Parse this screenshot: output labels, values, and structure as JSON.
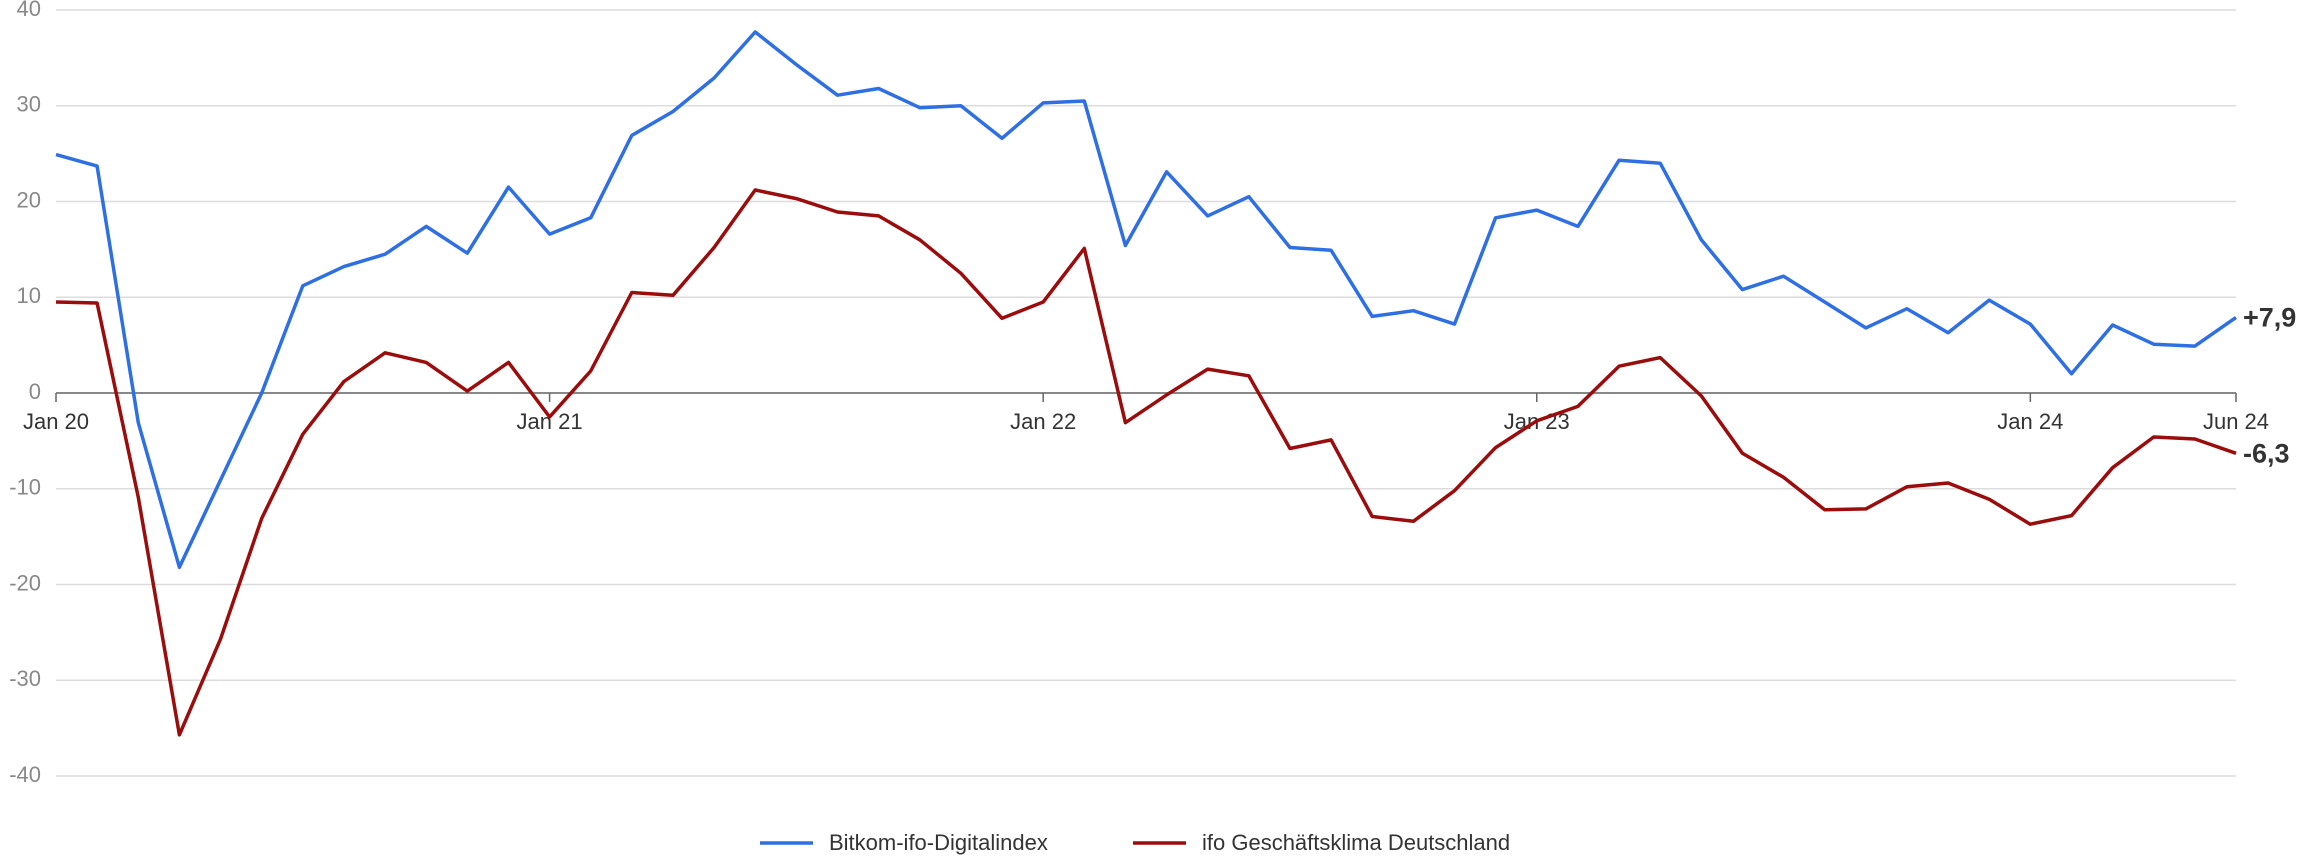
{
  "chart_data": {
    "type": "line",
    "categories": [
      "Jan 20",
      null,
      null,
      null,
      null,
      null,
      null,
      null,
      null,
      null,
      null,
      null,
      "Jan 21",
      null,
      null,
      null,
      null,
      null,
      null,
      null,
      null,
      null,
      null,
      null,
      "Jan 22",
      null,
      null,
      null,
      null,
      null,
      null,
      null,
      null,
      null,
      null,
      null,
      "Jan 23",
      null,
      null,
      null,
      null,
      null,
      null,
      null,
      null,
      null,
      null,
      null,
      "Jan 24",
      null,
      null,
      null,
      null,
      "Jun 24"
    ],
    "series": [
      {
        "name": "Bitkom-ifo-Digitalindex",
        "color": "#2f6fe4",
        "end_label": "+7,9",
        "values": [
          24.9,
          23.7,
          -3.1,
          -18.2,
          -9.1,
          0,
          11.2,
          13.2,
          14.5,
          17.4,
          14.6,
          21.5,
          16.6,
          18.3,
          26.9,
          29.4,
          32.9,
          37.7,
          34.3,
          31.1,
          31.8,
          29.8,
          30.0,
          26.6,
          30.3,
          30.5,
          15.4,
          23.1,
          18.5,
          20.5,
          15.2,
          14.9,
          8.0,
          8.6,
          7.2,
          18.3,
          19.1,
          17.4,
          24.3,
          24.0,
          16.0,
          10.8,
          12.2,
          9.5,
          6.8,
          8.8,
          6.3,
          9.7,
          7.2,
          2.0,
          7.1,
          5.1,
          4.9,
          7.9
        ]
      },
      {
        "name": "ifo Geschäftsklima Deutschland",
        "color": "#9b0d0d",
        "end_label": "-6,3",
        "values": [
          9.5,
          9.4,
          -10.9,
          -35.7,
          -25.7,
          -13.1,
          -4.3,
          1.2,
          4.2,
          3.2,
          0.2,
          3.2,
          -2.5,
          2.3,
          10.5,
          10.2,
          15.2,
          21.2,
          20.3,
          18.9,
          18.5,
          16.0,
          12.5,
          7.8,
          9.5,
          15.1,
          -3.1,
          -0.2,
          2.5,
          1.8,
          -5.8,
          -4.9,
          -12.9,
          -13.4,
          -10.2,
          -5.7,
          -2.9,
          -1.4,
          2.8,
          3.7,
          -0.3,
          -6.3,
          -8.8,
          -12.2,
          -12.1,
          -9.8,
          -9.4,
          -11.1,
          -13.7,
          -12.8,
          -7.8,
          -4.6,
          -4.8,
          -6.3
        ]
      }
    ],
    "ylim": [
      -40,
      40
    ],
    "yticks": [
      -40,
      -30,
      -20,
      -10,
      0,
      10,
      20,
      30,
      40
    ],
    "grid": true,
    "legend": "bottom"
  }
}
